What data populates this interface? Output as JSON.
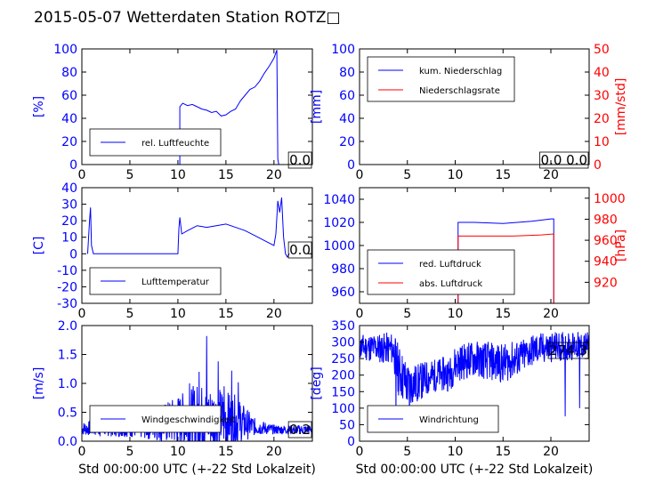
{
  "title": "2015-05-07 Wetterdaten Station ROTZ□",
  "colors": {
    "primary": "#0000ff",
    "secondary": "#ff0000",
    "frame": "#000000"
  },
  "chart_data": [
    {
      "id": "humidity",
      "type": "line",
      "xlim": [
        0,
        24
      ],
      "xticks": [
        0,
        5,
        10,
        15,
        20
      ],
      "ylim": [
        0,
        100
      ],
      "yticks": [
        0,
        20,
        40,
        60,
        80,
        100
      ],
      "ylabel": "[%]",
      "xlabel": "",
      "legend": {
        "position": "lower-left",
        "entries": [
          "rel. Luftfeuchte"
        ]
      },
      "value_box": "0.0",
      "series": [
        {
          "name": "rel. Luftfeuchte",
          "color": "#0000ff",
          "points": [
            [
              0,
              0
            ],
            [
              10.2,
              0
            ],
            [
              10.2,
              50
            ],
            [
              10.5,
              53
            ],
            [
              11,
              51
            ],
            [
              11.5,
              52
            ],
            [
              12,
              50
            ],
            [
              12.5,
              48
            ],
            [
              13,
              47
            ],
            [
              13.5,
              45
            ],
            [
              14,
              46
            ],
            [
              14.5,
              42
            ],
            [
              15,
              43
            ],
            [
              15.5,
              46
            ],
            [
              16,
              48
            ],
            [
              16.5,
              55
            ],
            [
              17,
              60
            ],
            [
              17.5,
              65
            ],
            [
              18,
              67
            ],
            [
              18.5,
              72
            ],
            [
              19,
              79
            ],
            [
              19.5,
              85
            ],
            [
              20,
              92
            ],
            [
              20.3,
              99
            ],
            [
              20.4,
              5
            ],
            [
              20.5,
              0
            ],
            [
              24,
              0
            ]
          ]
        }
      ]
    },
    {
      "id": "precip",
      "type": "line",
      "xlim": [
        0,
        24
      ],
      "xticks": [
        0,
        5,
        10,
        15,
        20
      ],
      "ylim": [
        0,
        100
      ],
      "yticks": [
        0,
        20,
        40,
        60,
        80,
        100
      ],
      "ylabel": "[mm]",
      "xlabel": "",
      "y2lim": [
        0,
        50
      ],
      "y2ticks": [
        0,
        10,
        20,
        30,
        40,
        50
      ],
      "y2label": "[mm/std]",
      "legend": {
        "position": "upper-left",
        "entries": [
          "kum. Niederschlag",
          "Niederschlagsrate"
        ]
      },
      "value_box": "0.0 0.0",
      "series": [
        {
          "name": "kum. Niederschlag",
          "color": "#0000ff",
          "points": [
            [
              1,
              0
            ],
            [
              24,
              0
            ]
          ]
        },
        {
          "name": "Niederschlagsrate",
          "color": "#ff0000",
          "axis": "right",
          "points": [
            [
              1,
              0
            ],
            [
              24,
              0
            ]
          ]
        }
      ]
    },
    {
      "id": "temperature",
      "type": "line",
      "xlim": [
        0,
        24
      ],
      "xticks": [
        0,
        5,
        10,
        15,
        20
      ],
      "ylim": [
        -30,
        40
      ],
      "yticks": [
        -30,
        -20,
        -10,
        0,
        10,
        20,
        30,
        40
      ],
      "ylabel": "[C]",
      "xlabel": "",
      "legend": {
        "position": "lower-left",
        "entries": [
          "Lufttemperatur"
        ]
      },
      "value_box": "0.0",
      "series": [
        {
          "name": "Lufttemperatur",
          "color": "#0000ff",
          "points": [
            [
              0.6,
              0
            ],
            [
              0.8,
              20
            ],
            [
              0.9,
              28
            ],
            [
              1.0,
              5
            ],
            [
              1.2,
              0
            ],
            [
              10,
              0
            ],
            [
              10.1,
              15
            ],
            [
              10.2,
              22
            ],
            [
              10.4,
              12
            ],
            [
              11,
              14
            ],
            [
              12,
              17
            ],
            [
              13,
              16
            ],
            [
              14,
              17
            ],
            [
              15,
              18
            ],
            [
              16,
              16
            ],
            [
              17,
              14
            ],
            [
              18,
              11
            ],
            [
              19,
              8
            ],
            [
              20,
              5
            ],
            [
              20.2,
              12
            ],
            [
              20.4,
              32
            ],
            [
              20.6,
              25
            ],
            [
              20.8,
              34
            ],
            [
              21,
              10
            ],
            [
              21.2,
              0
            ],
            [
              21.4,
              -2
            ],
            [
              21.6,
              0
            ]
          ]
        }
      ]
    },
    {
      "id": "pressure",
      "type": "line",
      "xlim": [
        0,
        24
      ],
      "xticks": [
        0,
        5,
        10,
        15,
        20
      ],
      "ylim": [
        950,
        1050
      ],
      "yticks": [
        960,
        980,
        1000,
        1020,
        1040
      ],
      "ylabel": "",
      "xlabel": "",
      "y2lim": [
        900,
        1010
      ],
      "y2ticks": [
        920,
        940,
        960,
        980,
        1000
      ],
      "y2label": "[hPa]",
      "legend": {
        "position": "lower-left",
        "entries": [
          "red. Luftdruck",
          "abs. Luftdruck"
        ]
      },
      "series": [
        {
          "name": "red. Luftdruck",
          "color": "#0000ff",
          "points": [
            [
              10.3,
              950
            ],
            [
              10.3,
              1020
            ],
            [
              12,
              1020
            ],
            [
              15,
              1019
            ],
            [
              18,
              1021
            ],
            [
              20,
              1023
            ],
            [
              20.3,
              1023
            ],
            [
              20.3,
              950
            ]
          ]
        },
        {
          "name": "abs. Luftdruck",
          "color": "#ff0000",
          "axis": "right",
          "points": [
            [
              10.3,
              900
            ],
            [
              10.3,
              964
            ],
            [
              13,
              964
            ],
            [
              16,
              964
            ],
            [
              19,
              965
            ],
            [
              20.3,
              966
            ],
            [
              20.3,
              900
            ]
          ]
        }
      ]
    },
    {
      "id": "wind",
      "type": "line",
      "xlim": [
        0,
        24
      ],
      "xticks": [
        0,
        5,
        10,
        15,
        20
      ],
      "ylim": [
        0,
        2
      ],
      "yticks": [
        0.0,
        0.5,
        1.0,
        1.5,
        2.0
      ],
      "ylabel": "[m/s]",
      "xlabel": "Std 00:00:00 UTC (+-22 Std Lokalzeit)",
      "legend": {
        "position": "lower-left",
        "entries": [
          "Windgeschwindigkeit"
        ]
      },
      "value_box": "0.2",
      "series": [
        {
          "name": "Windgeschwindigkeit",
          "color": "#0000ff",
          "noisy": true,
          "seed": 7,
          "base": [
            [
              0,
              0.22
            ],
            [
              5,
              0.22
            ],
            [
              8,
              0.3
            ],
            [
              10,
              0.35
            ],
            [
              12,
              0.4
            ],
            [
              14,
              0.4
            ],
            [
              16,
              0.35
            ],
            [
              18,
              0.25
            ],
            [
              20,
              0.2
            ],
            [
              24,
              0.2
            ]
          ],
          "amp": [
            [
              0,
              0.12
            ],
            [
              5,
              0.15
            ],
            [
              8,
              0.3
            ],
            [
              10,
              0.45
            ],
            [
              12,
              0.6
            ],
            [
              14,
              0.55
            ],
            [
              16,
              0.45
            ],
            [
              18,
              0.15
            ],
            [
              20,
              0.08
            ],
            [
              24,
              0.08
            ]
          ],
          "peaks": [
            [
              13.0,
              1.82
            ],
            [
              14.2,
              1.38
            ],
            [
              15.6,
              1.22
            ],
            [
              12.2,
              1.2
            ],
            [
              16.3,
              1.02
            ],
            [
              11.2,
              1.0
            ],
            [
              14.8,
              0.95
            ]
          ]
        }
      ]
    },
    {
      "id": "direction",
      "type": "line",
      "xlim": [
        0,
        24
      ],
      "xticks": [
        0,
        5,
        10,
        15,
        20
      ],
      "ylim": [
        0,
        350
      ],
      "yticks": [
        0,
        50,
        100,
        150,
        200,
        250,
        300,
        350
      ],
      "ylabel": "[deg]",
      "xlabel": "Std 00:00:00 UTC (+-22 Std Lokalzeit)",
      "legend": {
        "position": "lower-left",
        "entries": [
          "Windrichtung"
        ]
      },
      "value_box": "274.3",
      "series": [
        {
          "name": "Windrichtung",
          "color": "#0000ff",
          "noisy": true,
          "seed": 11,
          "base": [
            [
              0,
              285
            ],
            [
              3.5,
              280
            ],
            [
              4,
              220
            ],
            [
              5,
              170
            ],
            [
              6,
              175
            ],
            [
              7,
              190
            ],
            [
              8,
              200
            ],
            [
              9.5,
              205
            ],
            [
              10,
              235
            ],
            [
              12,
              250
            ],
            [
              15,
              235
            ],
            [
              17,
              255
            ],
            [
              18,
              275
            ],
            [
              20,
              285
            ],
            [
              24,
              290
            ]
          ],
          "amp": [
            [
              0,
              40
            ],
            [
              3.5,
              50
            ],
            [
              4,
              80
            ],
            [
              6,
              60
            ],
            [
              8,
              50
            ],
            [
              10,
              55
            ],
            [
              15,
              60
            ],
            [
              18,
              50
            ],
            [
              24,
              40
            ]
          ],
          "peaks": [
            [
              3.8,
              80
            ],
            [
              5.2,
              90
            ],
            [
              21.5,
              75
            ],
            [
              23,
              100
            ]
          ]
        }
      ]
    }
  ]
}
